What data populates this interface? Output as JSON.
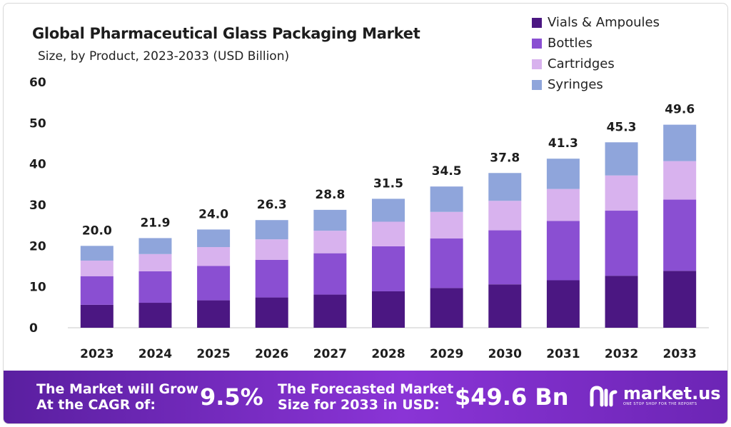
{
  "chart_data": {
    "type": "bar",
    "stacked": true,
    "title": "Global Pharmaceutical Glass Packaging Market",
    "subtitle": "Size, by Product, 2023-2033 (USD Billion)",
    "categories": [
      "2023",
      "2024",
      "2025",
      "2026",
      "2027",
      "2028",
      "2029",
      "2030",
      "2031",
      "2032",
      "2033"
    ],
    "totals": [
      "20.0",
      "21.9",
      "24.0",
      "26.3",
      "28.8",
      "31.5",
      "34.5",
      "37.8",
      "41.3",
      "45.3",
      "49.6"
    ],
    "series": [
      {
        "name": "Vials & Ampoules",
        "color": "#4b1782",
        "values": [
          5.6,
          6.1,
          6.7,
          7.4,
          8.1,
          8.9,
          9.7,
          10.6,
          11.6,
          12.7,
          13.9
        ]
      },
      {
        "name": "Bottles",
        "color": "#8a4fd2",
        "values": [
          7.0,
          7.7,
          8.4,
          9.2,
          10.1,
          11.0,
          12.1,
          13.2,
          14.5,
          15.9,
          17.4
        ]
      },
      {
        "name": "Cartridges",
        "color": "#d8b2ee",
        "values": [
          3.8,
          4.2,
          4.6,
          5.0,
          5.5,
          6.0,
          6.5,
          7.2,
          7.8,
          8.6,
          9.4
        ]
      },
      {
        "name": "Syringes",
        "color": "#8fa5db",
        "values": [
          3.6,
          3.9,
          4.3,
          4.7,
          5.1,
          5.6,
          6.2,
          6.8,
          7.4,
          8.1,
          8.9
        ]
      }
    ],
    "yticks": [
      0,
      10,
      20,
      30,
      40,
      50,
      60
    ],
    "ylim": [
      0,
      60
    ],
    "legend_position": "top-right",
    "grid": false
  },
  "banner": {
    "cagr_label_line1": "The Market will Grow",
    "cagr_label_line2": "At the CAGR of:",
    "cagr_value": "9.5%",
    "forecast_label_line1": "The Forecasted Market",
    "forecast_label_line2": "Size for 2033 in USD:",
    "forecast_value": "$49.6 Bn",
    "brand_name": "market.us",
    "brand_tagline": "ONE STOP SHOP FOR THE REPORTS"
  }
}
